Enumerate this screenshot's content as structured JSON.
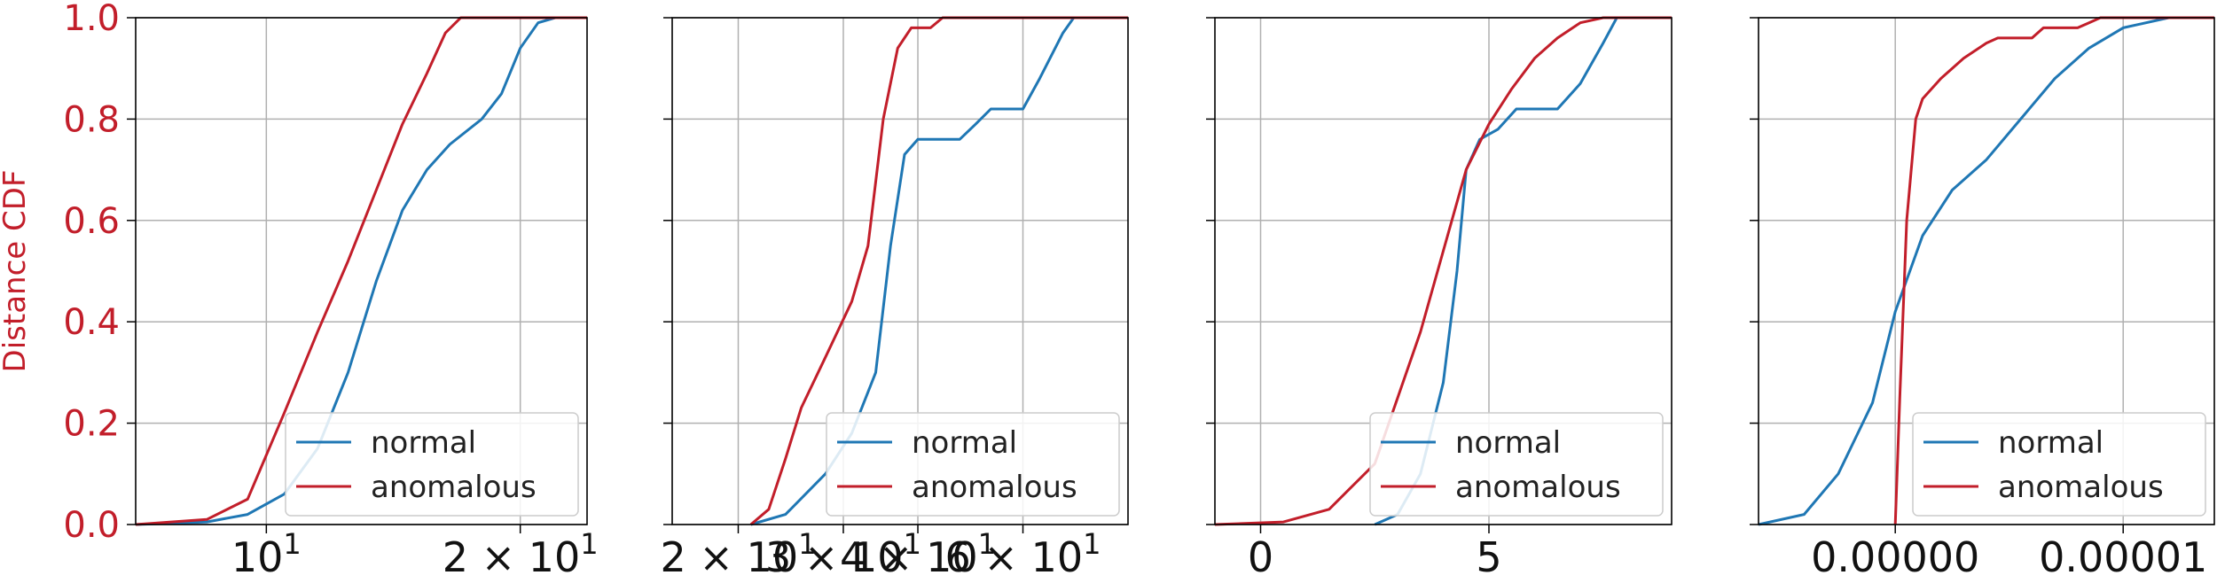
{
  "colors": {
    "normal": "#1f77b4",
    "anomalous": "#c21e2a",
    "ylabel": "#c21e2a",
    "grid": "#b0b0b0",
    "axes": "#000000"
  },
  "chart_data": [
    {
      "type": "line",
      "xscale": "log",
      "xlim": [
        7,
        24
      ],
      "ylim": [
        0,
        1
      ],
      "grid": true,
      "ylabel": "Distance CDF",
      "yticks": [
        "0.0",
        "0.2",
        "0.4",
        "0.6",
        "0.8",
        "1.0"
      ],
      "xticks": [
        {
          "value": 10,
          "base": "10",
          "exp": "1"
        },
        {
          "value": 20,
          "base": "2 × 10",
          "exp": "1"
        }
      ],
      "legend": {
        "position": "lower-right",
        "entries": [
          "normal",
          "anomalous"
        ]
      },
      "series": [
        {
          "name": "normal",
          "points": [
            [
              7.0,
              0.0
            ],
            [
              8.5,
              0.005
            ],
            [
              9.5,
              0.02
            ],
            [
              10.5,
              0.06
            ],
            [
              11.5,
              0.15
            ],
            [
              12.5,
              0.3
            ],
            [
              13.5,
              0.48
            ],
            [
              14.5,
              0.62
            ],
            [
              15.5,
              0.7
            ],
            [
              16.5,
              0.75
            ],
            [
              18.0,
              0.8
            ],
            [
              19.0,
              0.85
            ],
            [
              20.0,
              0.94
            ],
            [
              21.0,
              0.99
            ],
            [
              22.0,
              1.0
            ],
            [
              24.0,
              1.0
            ]
          ]
        },
        {
          "name": "anomalous",
          "points": [
            [
              7.0,
              0.0
            ],
            [
              8.5,
              0.01
            ],
            [
              9.5,
              0.05
            ],
            [
              10.5,
              0.22
            ],
            [
              11.5,
              0.38
            ],
            [
              12.5,
              0.52
            ],
            [
              13.5,
              0.66
            ],
            [
              14.5,
              0.79
            ],
            [
              15.5,
              0.89
            ],
            [
              16.3,
              0.97
            ],
            [
              17.0,
              1.0
            ],
            [
              24.0,
              1.0
            ]
          ]
        }
      ]
    },
    {
      "type": "line",
      "xscale": "log",
      "xlim": [
        15.5,
        90
      ],
      "ylim": [
        0,
        1
      ],
      "grid": true,
      "xticks": [
        {
          "value": 20,
          "base": "2 × 10",
          "exp": "1"
        },
        {
          "value": 30,
          "base": "3 × 10",
          "exp": "1"
        },
        {
          "value": 40,
          "base": "4 × 10",
          "exp": "1"
        },
        {
          "value": 60,
          "base": "6 × 10",
          "exp": "1"
        }
      ],
      "legend": {
        "position": "lower-right",
        "entries": [
          "normal",
          "anomalous"
        ]
      },
      "series": [
        {
          "name": "normal",
          "points": [
            [
              21.0,
              0.0
            ],
            [
              24.0,
              0.02
            ],
            [
              28.0,
              0.1
            ],
            [
              31.0,
              0.18
            ],
            [
              34.0,
              0.3
            ],
            [
              36.0,
              0.55
            ],
            [
              38.0,
              0.73
            ],
            [
              40.0,
              0.76
            ],
            [
              47.0,
              0.76
            ],
            [
              50.0,
              0.79
            ],
            [
              53.0,
              0.82
            ],
            [
              60.0,
              0.82
            ],
            [
              64.0,
              0.88
            ],
            [
              70.0,
              0.97
            ],
            [
              73.0,
              1.0
            ],
            [
              90.0,
              1.0
            ]
          ]
        },
        {
          "name": "anomalous",
          "points": [
            [
              21.0,
              0.0
            ],
            [
              22.5,
              0.03
            ],
            [
              24.0,
              0.13
            ],
            [
              25.5,
              0.23
            ],
            [
              28.0,
              0.33
            ],
            [
              31.0,
              0.44
            ],
            [
              33.0,
              0.55
            ],
            [
              35.0,
              0.8
            ],
            [
              37.0,
              0.94
            ],
            [
              39.0,
              0.98
            ],
            [
              42.0,
              0.98
            ],
            [
              44.0,
              1.0
            ],
            [
              90.0,
              1.0
            ]
          ]
        }
      ]
    },
    {
      "type": "line",
      "xscale": "linear",
      "xlim": [
        -1.0,
        9.0
      ],
      "ylim": [
        0,
        1
      ],
      "grid": true,
      "xticks": [
        {
          "value": 0,
          "base": "0",
          "exp": ""
        },
        {
          "value": 5,
          "base": "5",
          "exp": ""
        }
      ],
      "legend": {
        "position": "lower-right",
        "entries": [
          "normal",
          "anomalous"
        ]
      },
      "series": [
        {
          "name": "normal",
          "points": [
            [
              2.5,
              0.0
            ],
            [
              3.0,
              0.02
            ],
            [
              3.5,
              0.1
            ],
            [
              4.0,
              0.28
            ],
            [
              4.3,
              0.5
            ],
            [
              4.5,
              0.7
            ],
            [
              4.8,
              0.76
            ],
            [
              5.2,
              0.78
            ],
            [
              5.6,
              0.82
            ],
            [
              6.5,
              0.82
            ],
            [
              7.0,
              0.87
            ],
            [
              7.5,
              0.95
            ],
            [
              7.8,
              1.0
            ],
            [
              9.0,
              1.0
            ]
          ]
        },
        {
          "name": "anomalous",
          "points": [
            [
              -1.0,
              0.0
            ],
            [
              0.5,
              0.005
            ],
            [
              1.5,
              0.03
            ],
            [
              2.5,
              0.12
            ],
            [
              3.5,
              0.38
            ],
            [
              4.5,
              0.7
            ],
            [
              5.0,
              0.79
            ],
            [
              5.5,
              0.86
            ],
            [
              6.0,
              0.92
            ],
            [
              6.5,
              0.96
            ],
            [
              7.0,
              0.99
            ],
            [
              7.5,
              1.0
            ],
            [
              9.0,
              1.0
            ]
          ]
        }
      ]
    },
    {
      "type": "line",
      "xscale": "linear",
      "xlim": [
        -6e-06,
        1.4e-05
      ],
      "ylim": [
        0,
        1
      ],
      "grid": true,
      "xticks": [
        {
          "value": 0,
          "base": "0.00000",
          "exp": ""
        },
        {
          "value": 1e-05,
          "base": "0.00001",
          "exp": ""
        }
      ],
      "legend": {
        "position": "lower-right",
        "entries": [
          "normal",
          "anomalous"
        ]
      },
      "series": [
        {
          "name": "normal",
          "points": [
            [
              -6e-06,
              0.0
            ],
            [
              -4e-06,
              0.02
            ],
            [
              -2.5e-06,
              0.1
            ],
            [
              -1e-06,
              0.24
            ],
            [
              0.0,
              0.42
            ],
            [
              1.2e-06,
              0.57
            ],
            [
              2.5e-06,
              0.66
            ],
            [
              4e-06,
              0.72
            ],
            [
              5.5e-06,
              0.8
            ],
            [
              7e-06,
              0.88
            ],
            [
              8.5e-06,
              0.94
            ],
            [
              1e-05,
              0.98
            ],
            [
              1.2e-05,
              1.0
            ],
            [
              1.4e-05,
              1.0
            ]
          ]
        },
        {
          "name": "anomalous",
          "points": [
            [
              0.0,
              0.0
            ],
            [
              2e-07,
              0.25
            ],
            [
              5e-07,
              0.6
            ],
            [
              9e-07,
              0.8
            ],
            [
              1.2e-06,
              0.84
            ],
            [
              2e-06,
              0.88
            ],
            [
              2.5e-06,
              0.9
            ],
            [
              3e-06,
              0.92
            ],
            [
              4e-06,
              0.95
            ],
            [
              4.5e-06,
              0.96
            ],
            [
              6e-06,
              0.96
            ],
            [
              6.5e-06,
              0.98
            ],
            [
              8e-06,
              0.98
            ],
            [
              8.5e-06,
              0.99
            ],
            [
              9e-06,
              1.0
            ],
            [
              1.4e-05,
              1.0
            ]
          ]
        }
      ]
    }
  ]
}
